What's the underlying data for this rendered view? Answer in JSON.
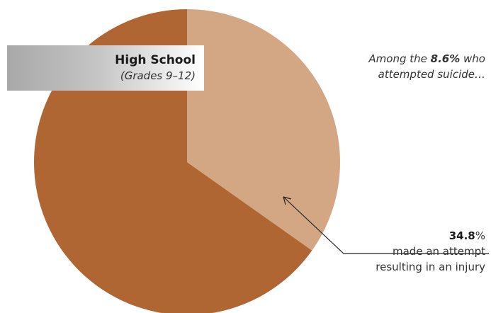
{
  "chart_data": {
    "type": "pie",
    "slices": [
      {
        "label": "made an attempt resulting in an injury",
        "value": 34.8,
        "color": "#d4a784"
      },
      {
        "label": "",
        "value": 65.2,
        "color": "#b06632"
      }
    ],
    "start_angle_deg": 0,
    "direction": "clockwise"
  },
  "group_label": {
    "title": "High School",
    "subtitle": "(Grades 9–12)"
  },
  "note_top": {
    "prefix": "Among the ",
    "value": "8.6%",
    "suffix_line1": " who",
    "line2": "attempted suicide…"
  },
  "note_right": {
    "value": "34.8",
    "unit": "%",
    "line2": "made an attempt",
    "line3": "resulting in an injury"
  },
  "colors": {
    "injury_slice": "#d4a784",
    "other_slice": "#b06632",
    "leader_line": "#222222"
  }
}
